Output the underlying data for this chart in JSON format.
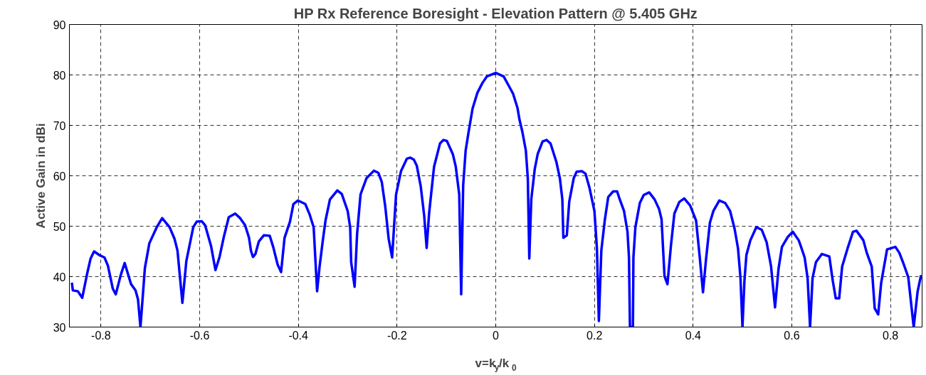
{
  "chart_data": {
    "type": "line",
    "title": "HP Rx Reference Boresight - Elevation Pattern @ 5.405 GHz",
    "xlabel": "v=k$_{y}$/k$_{0}$",
    "ylabel": "Active Gain in dBi",
    "xlim": [
      -0.864,
      0.864
    ],
    "ylim": [
      30,
      90
    ],
    "xticks": [
      -0.8,
      -0.6,
      -0.4,
      -0.2,
      0,
      0.2,
      0.4,
      0.6,
      0.8
    ],
    "yticks": [
      30,
      40,
      50,
      60,
      70,
      80,
      90
    ],
    "grid": true,
    "marker": "none",
    "line_style": "solid",
    "series": [
      {
        "color": "#0000ff",
        "x": [
          -0.859,
          -0.857,
          -0.847,
          -0.838,
          -0.828,
          -0.821,
          -0.814,
          -0.802,
          -0.793,
          -0.786,
          -0.776,
          -0.77,
          -0.76,
          -0.752,
          -0.739,
          -0.73,
          -0.725,
          -0.72,
          -0.711,
          -0.702,
          -0.687,
          -0.676,
          -0.661,
          -0.651,
          -0.645,
          -0.635,
          -0.627,
          -0.613,
          -0.606,
          -0.596,
          -0.589,
          -0.577,
          -0.568,
          -0.56,
          -0.551,
          -0.541,
          -0.528,
          -0.518,
          -0.508,
          -0.5,
          -0.496,
          -0.492,
          -0.487,
          -0.48,
          -0.47,
          -0.458,
          -0.451,
          -0.442,
          -0.435,
          -0.428,
          -0.417,
          -0.41,
          -0.401,
          -0.386,
          -0.377,
          -0.369,
          -0.362,
          -0.357,
          -0.35,
          -0.345,
          -0.336,
          -0.321,
          -0.312,
          -0.3,
          -0.295,
          -0.293,
          -0.286,
          -0.281,
          -0.274,
          -0.262,
          -0.247,
          -0.238,
          -0.231,
          -0.224,
          -0.217,
          -0.21,
          -0.202,
          -0.192,
          -0.18,
          -0.173,
          -0.166,
          -0.16,
          -0.152,
          -0.145,
          -0.14,
          -0.135,
          -0.125,
          -0.113,
          -0.106,
          -0.099,
          -0.087,
          -0.081,
          -0.074,
          -0.07,
          -0.066,
          -0.061,
          -0.055,
          -0.047,
          -0.037,
          -0.027,
          -0.018,
          0,
          0.016,
          0.025,
          0.035,
          0.044,
          0.048,
          0.054,
          0.061,
          0.065,
          0.068,
          0.072,
          0.079,
          0.085,
          0.095,
          0.103,
          0.111,
          0.123,
          0.13,
          0.135,
          0.137,
          0.144,
          0.149,
          0.158,
          0.164,
          0.175,
          0.182,
          0.19,
          0.2,
          0.205,
          0.209,
          0.214,
          0.221,
          0.228,
          0.238,
          0.246,
          0.25,
          0.26,
          0.267,
          0.27,
          0.272,
          0.278,
          0.279,
          0.283,
          0.292,
          0.3,
          0.311,
          0.322,
          0.331,
          0.336,
          0.342,
          0.348,
          0.355,
          0.362,
          0.372,
          0.382,
          0.394,
          0.406,
          0.413,
          0.42,
          0.426,
          0.434,
          0.441,
          0.453,
          0.465,
          0.475,
          0.484,
          0.491,
          0.496,
          0.5,
          0.504,
          0.508,
          0.516,
          0.528,
          0.539,
          0.549,
          0.558,
          0.566,
          0.573,
          0.58,
          0.592,
          0.602,
          0.614,
          0.618,
          0.626,
          0.632,
          0.637,
          0.642,
          0.649,
          0.661,
          0.676,
          0.683,
          0.689,
          0.696,
          0.702,
          0.714,
          0.724,
          0.731,
          0.745,
          0.752,
          0.762,
          0.768,
          0.775,
          0.781,
          0.793,
          0.81,
          0.818,
          0.827,
          0.836,
          0.847,
          0.855,
          0.862
        ],
        "values": [
          38.8,
          37.3,
          37.1,
          35.8,
          40.6,
          43.6,
          45.0,
          44.2,
          43.8,
          42.2,
          37.6,
          36.5,
          40.3,
          42.7,
          38.5,
          37.3,
          35.5,
          30,
          41.7,
          46.6,
          49.8,
          51.6,
          49.8,
          47.5,
          45.2,
          34.8,
          43.1,
          49.8,
          50.9,
          51.0,
          50.2,
          46.1,
          41.3,
          43.8,
          47.9,
          51.8,
          52.5,
          51.6,
          50.2,
          47.7,
          45.1,
          43.9,
          44.5,
          47.0,
          48.2,
          48.1,
          45.9,
          42.4,
          40.9,
          47.7,
          50.9,
          54.4,
          55.1,
          54.4,
          52.3,
          49.8,
          37.1,
          42.0,
          47.5,
          51.1,
          55.3,
          57.1,
          56.4,
          53.0,
          49.8,
          42.9,
          38.0,
          48.4,
          56.3,
          59.5,
          61.0,
          60.6,
          58.8,
          54.0,
          47.5,
          43.8,
          56.3,
          60.9,
          63.4,
          63.6,
          63.2,
          62.0,
          57.9,
          52.1,
          45.7,
          52.6,
          61.8,
          66.4,
          67.1,
          66.9,
          64.3,
          61.8,
          56.3,
          36.5,
          58.1,
          65.0,
          68.7,
          73.3,
          76.5,
          78.4,
          79.7,
          80.4,
          79.7,
          78.1,
          76.3,
          73.5,
          71.2,
          68.7,
          65.0,
          59.5,
          43.6,
          55.3,
          61.3,
          64.3,
          66.8,
          67.1,
          66.4,
          62.7,
          59.5,
          55.3,
          47.7,
          48.2,
          54.9,
          59.5,
          60.8,
          60.9,
          60.4,
          57.6,
          53.0,
          45.7,
          31.2,
          45.2,
          51.2,
          55.8,
          56.9,
          56.9,
          55.7,
          53.0,
          48.9,
          43.8,
          30,
          30,
          43.8,
          49.8,
          54.6,
          56.2,
          56.7,
          55.3,
          53.4,
          51.4,
          40.1,
          38.5,
          46.1,
          52.5,
          54.8,
          55.5,
          54.1,
          51.1,
          44.3,
          36.9,
          43.3,
          50.7,
          53.0,
          55.1,
          54.6,
          53.0,
          49.5,
          45.6,
          39.7,
          30,
          39.2,
          44.3,
          47.2,
          49.8,
          49.3,
          46.8,
          42.0,
          33.9,
          41.5,
          45.9,
          47.9,
          48.9,
          47.2,
          46.1,
          43.8,
          39.7,
          30,
          39.7,
          42.9,
          44.5,
          44.0,
          39.2,
          35.7,
          35.7,
          42.0,
          45.9,
          48.9,
          49.1,
          47.2,
          44.7,
          42.0,
          33.7,
          32.5,
          38.7,
          45.4,
          45.9,
          44.7,
          42.4,
          39.9,
          30,
          37.1,
          40.3
        ]
      }
    ]
  }
}
